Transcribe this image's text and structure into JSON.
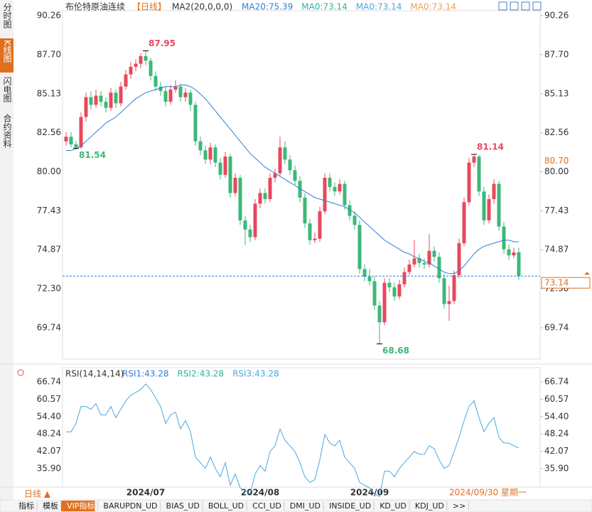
{
  "sidebar_tabs": [
    "分时图",
    "K线图",
    "闪电图",
    "合约资料"
  ],
  "chart_data": {
    "type": "candlestick",
    "title": "布伦特原油连续",
    "period": "【日线】",
    "indicator": "MA2(20,0,0,0)",
    "legend": [
      {
        "label": "MA20:75.39",
        "color": "#2f7fd4"
      },
      {
        "label": "MA0:73.14",
        "color": "#2bb3a0"
      },
      {
        "label": "MA0:73.14",
        "color": "#4aa8e0"
      },
      {
        "label": "MA0:73.14",
        "color": "#f0a050"
      }
    ],
    "categories": [
      null,
      null,
      null,
      null,
      null,
      null,
      null,
      null,
      null,
      null,
      null,
      null,
      null,
      null,
      null,
      null,
      "2024/07",
      null,
      null,
      null,
      null,
      null,
      null,
      null,
      null,
      null,
      null,
      null,
      null,
      null,
      null,
      null,
      null,
      null,
      null,
      null,
      null,
      null,
      null,
      "2024/08",
      null,
      null,
      null,
      null,
      null,
      null,
      null,
      null,
      null,
      null,
      null,
      null,
      null,
      null,
      null,
      null,
      null,
      null,
      null,
      null,
      null,
      "2024/09",
      null,
      null,
      null,
      null,
      null,
      null,
      null,
      null,
      null,
      null,
      null,
      null,
      null,
      null,
      null,
      null,
      null,
      null,
      null,
      null,
      null,
      null,
      null,
      null,
      null,
      null,
      null,
      null,
      null,
      null
    ],
    "candles": [
      [
        82.0,
        82.6,
        81.7,
        82.3
      ],
      [
        82.3,
        82.6,
        81.6,
        81.8
      ],
      [
        81.8,
        82.0,
        81.54,
        81.6
      ],
      [
        81.6,
        83.9,
        81.5,
        83.6
      ],
      [
        83.6,
        85.2,
        83.3,
        84.9
      ],
      [
        84.9,
        85.3,
        84.1,
        84.4
      ],
      [
        84.4,
        85.4,
        84.2,
        85.0
      ],
      [
        85.0,
        85.3,
        84.3,
        84.6
      ],
      [
        84.6,
        84.9,
        83.9,
        84.2
      ],
      [
        84.2,
        85.5,
        84.0,
        85.2
      ],
      [
        85.2,
        85.4,
        84.2,
        84.5
      ],
      [
        84.5,
        85.9,
        84.3,
        85.6
      ],
      [
        85.6,
        86.7,
        85.4,
        86.4
      ],
      [
        86.4,
        87.2,
        86.1,
        86.9
      ],
      [
        86.9,
        87.4,
        86.6,
        87.1
      ],
      [
        87.1,
        87.8,
        86.8,
        87.6
      ],
      [
        87.6,
        87.95,
        87.0,
        87.3
      ],
      [
        87.3,
        87.5,
        86.0,
        86.3
      ],
      [
        86.3,
        86.6,
        85.3,
        85.6
      ],
      [
        85.6,
        85.9,
        85.0,
        85.3
      ],
      [
        85.3,
        85.6,
        84.3,
        84.6
      ],
      [
        84.6,
        85.7,
        84.4,
        85.4
      ],
      [
        85.4,
        86.0,
        85.2,
        85.6
      ],
      [
        85.6,
        85.8,
        84.6,
        84.9
      ],
      [
        84.9,
        85.5,
        84.6,
        85.2
      ],
      [
        85.2,
        85.4,
        84.0,
        84.4
      ],
      [
        84.4,
        84.6,
        81.7,
        82.0
      ],
      [
        82.0,
        82.3,
        81.1,
        81.4
      ],
      [
        81.4,
        81.7,
        80.5,
        80.8
      ],
      [
        80.8,
        81.9,
        80.5,
        81.6
      ],
      [
        81.6,
        81.8,
        80.3,
        80.6
      ],
      [
        80.6,
        80.9,
        79.5,
        79.8
      ],
      [
        79.8,
        81.3,
        79.6,
        81.0
      ],
      [
        81.0,
        81.2,
        78.3,
        78.6
      ],
      [
        78.6,
        79.9,
        78.4,
        79.6
      ],
      [
        79.6,
        79.8,
        76.5,
        76.8
      ],
      [
        76.8,
        77.1,
        75.2,
        76.2
      ],
      [
        76.2,
        76.5,
        75.4,
        75.7
      ],
      [
        75.7,
        78.2,
        75.5,
        77.9
      ],
      [
        77.9,
        78.9,
        77.6,
        78.6
      ],
      [
        78.6,
        78.9,
        77.9,
        78.2
      ],
      [
        78.2,
        79.9,
        78.0,
        79.6
      ],
      [
        79.6,
        80.2,
        79.3,
        79.9
      ],
      [
        79.9,
        82.3,
        79.7,
        81.6
      ],
      [
        81.6,
        82.0,
        80.5,
        80.8
      ],
      [
        80.8,
        81.1,
        79.8,
        80.1
      ],
      [
        80.1,
        80.4,
        79.1,
        79.4
      ],
      [
        79.4,
        79.7,
        78.0,
        78.3
      ],
      [
        78.3,
        78.6,
        76.3,
        76.6
      ],
      [
        76.6,
        76.9,
        75.2,
        75.5
      ],
      [
        75.5,
        76.0,
        75.3,
        75.6
      ],
      [
        75.6,
        77.7,
        75.4,
        77.4
      ],
      [
        77.4,
        79.9,
        77.2,
        79.6
      ],
      [
        79.6,
        79.9,
        78.7,
        79.0
      ],
      [
        79.0,
        79.3,
        78.4,
        78.7
      ],
      [
        78.7,
        79.5,
        78.5,
        79.2
      ],
      [
        79.2,
        79.4,
        77.5,
        77.8
      ],
      [
        77.8,
        78.1,
        76.8,
        77.1
      ],
      [
        77.1,
        77.4,
        76.2,
        76.5
      ],
      [
        76.5,
        76.8,
        73.3,
        73.6
      ],
      [
        73.6,
        73.9,
        72.8,
        73.1
      ],
      [
        73.1,
        73.6,
        72.5,
        72.8
      ],
      [
        72.8,
        73.1,
        70.9,
        71.2
      ],
      [
        71.2,
        71.5,
        68.68,
        70.1
      ],
      [
        70.1,
        73.0,
        69.9,
        72.7
      ],
      [
        72.7,
        73.0,
        72.1,
        72.4
      ],
      [
        72.4,
        72.7,
        71.5,
        71.8
      ],
      [
        71.8,
        72.9,
        71.6,
        72.6
      ],
      [
        72.6,
        73.7,
        72.4,
        73.4
      ],
      [
        73.4,
        74.2,
        73.2,
        73.9
      ],
      [
        73.9,
        75.5,
        73.7,
        74.3
      ],
      [
        74.3,
        74.6,
        73.7,
        74.0
      ],
      [
        74.0,
        74.3,
        73.6,
        73.9
      ],
      [
        73.9,
        75.9,
        73.7,
        74.8
      ],
      [
        74.8,
        75.1,
        74.1,
        74.4
      ],
      [
        74.4,
        74.7,
        72.7,
        73.0
      ],
      [
        73.0,
        73.3,
        71.0,
        71.3
      ],
      [
        71.3,
        72.5,
        70.2,
        71.5
      ],
      [
        71.5,
        73.5,
        71.3,
        73.2
      ],
      [
        73.2,
        75.6,
        73.0,
        75.3
      ],
      [
        75.3,
        78.3,
        75.1,
        78.0
      ],
      [
        78.0,
        80.9,
        77.8,
        80.6
      ],
      [
        80.6,
        81.14,
        80.3,
        81.0
      ],
      [
        81.0,
        81.1,
        78.4,
        78.7
      ],
      [
        78.7,
        79.0,
        76.5,
        76.8
      ],
      [
        76.8,
        78.5,
        76.6,
        78.2
      ],
      [
        78.2,
        79.5,
        77.9,
        79.2
      ],
      [
        79.2,
        79.4,
        76.1,
        76.4
      ],
      [
        76.4,
        76.7,
        74.6,
        74.9
      ],
      [
        74.9,
        75.2,
        74.2,
        74.5
      ],
      [
        74.5,
        75.0,
        74.3,
        74.7
      ],
      [
        74.7,
        75.0,
        72.9,
        73.14
      ]
    ],
    "up_color": "#e8485c",
    "down_color": "#3cb878",
    "ma20": {
      "color": "#2f7fd4",
      "values": [
        81.4,
        81.4,
        81.5,
        81.7,
        82.0,
        82.3,
        82.6,
        82.9,
        83.2,
        83.4,
        83.6,
        83.9,
        84.2,
        84.5,
        84.8,
        85.0,
        85.2,
        85.3,
        85.4,
        85.5,
        85.6,
        85.6,
        85.6,
        85.7,
        85.7,
        85.6,
        85.4,
        85.1,
        84.8,
        84.4,
        84.0,
        83.6,
        83.2,
        82.8,
        82.4,
        82.0,
        81.6,
        81.2,
        80.9,
        80.6,
        80.3,
        80.1,
        79.9,
        79.7,
        79.5,
        79.3,
        79.1,
        78.9,
        78.7,
        78.5,
        78.3,
        78.2,
        78.1,
        78.0,
        77.9,
        77.8,
        77.7,
        77.5,
        77.3,
        77.0,
        76.7,
        76.4,
        76.1,
        75.8,
        75.5,
        75.3,
        75.1,
        74.9,
        74.7,
        74.6,
        74.4,
        74.3,
        74.1,
        74.0,
        73.8,
        73.6,
        73.4,
        73.3,
        73.3,
        73.5,
        73.8,
        74.2,
        74.6,
        74.9,
        75.1,
        75.2,
        75.3,
        75.4,
        75.5,
        75.5,
        75.4,
        75.39
      ]
    },
    "ylim": [
      67.68,
      90.59
    ],
    "yticks": [
      90.26,
      {
        "value": 87.7,
        "label": "87.70"
      },
      85.13,
      82.56,
      {
        "value": 80,
        "label": "80.00"
      },
      77.43,
      74.87,
      {
        "value": 72.3,
        "label": "72.30"
      },
      69.74
    ],
    "price_marker": {
      "value": 80.7,
      "label": "80.70"
    },
    "period_button": "日线 ▲",
    "cursor_date": "2024/09/30 星期一"
  },
  "rsi": {
    "type": "line",
    "title": "RSI(14,14,14)",
    "legend": [
      {
        "label": "RSI1:43.28",
        "color": "#2f7fd4"
      },
      {
        "label": "RSI2:43.28",
        "color": "#2bb3a0"
      },
      {
        "label": "RSI3:43.28",
        "color": "#4aa8e0"
      }
    ],
    "color": "#4aa8e0",
    "values": [
      49,
      49,
      52,
      58,
      58,
      57,
      59,
      55,
      55,
      58,
      54,
      57,
      60,
      62,
      63,
      64,
      66,
      64,
      61,
      58,
      52,
      55,
      56,
      50,
      53,
      49,
      40,
      38,
      36,
      40,
      36,
      33,
      38,
      30,
      34,
      29,
      28,
      27,
      34,
      37,
      35,
      42,
      44,
      50,
      46,
      44,
      42,
      38,
      33,
      31,
      32,
      39,
      48,
      45,
      44,
      46,
      40,
      38,
      36,
      31,
      30,
      29,
      27,
      26,
      35,
      35,
      33,
      36,
      38,
      40,
      42,
      41,
      41,
      44,
      43,
      39,
      36,
      37,
      42,
      47,
      53,
      58,
      60,
      54,
      49,
      52,
      54,
      47,
      45,
      45,
      44,
      43.28
    ],
    "ylim": [
      29.33,
      71.8
    ],
    "yticks": [
      66.74,
      60.57,
      {
        "value": 54.4,
        "label": "54.40"
      },
      48.24,
      42.07,
      {
        "value": 35.9,
        "label": "35.90"
      }
    ]
  },
  "bottom_tabs": [
    "指标",
    "模板",
    "VIP指标",
    "BARUPDN_UD",
    "BIAS_UD",
    "BOLL_UD",
    "CCI_UD",
    "DMI_UD",
    "INSIDE_UD",
    "KD_UD",
    "KDJ_UD",
    ">>"
  ]
}
